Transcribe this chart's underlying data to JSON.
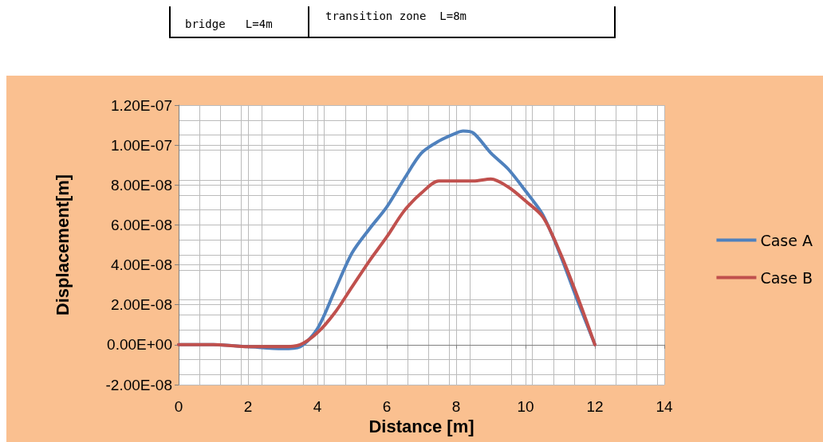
{
  "chart_data": {
    "type": "line",
    "xlabel": "Distance [m]",
    "ylabel": "Displacement[m]",
    "annotations": [
      "bridge   L=4m",
      "transition zone  L=8m"
    ],
    "xlim": [
      0,
      14
    ],
    "xticks": [
      0,
      2,
      4,
      6,
      8,
      10,
      12,
      14
    ],
    "ylim": [
      -2e-08,
      1.2e-07
    ],
    "yticks": [
      {
        "value": -2e-08,
        "label": "-2.00E-08"
      },
      {
        "value": 0,
        "label": "0.00E+00"
      },
      {
        "value": 2e-08,
        "label": "2.00E-08"
      },
      {
        "value": 4e-08,
        "label": "4.00E-08"
      },
      {
        "value": 6e-08,
        "label": "6.00E-08"
      },
      {
        "value": 8e-08,
        "label": "8.00E-08"
      },
      {
        "value": 1e-07,
        "label": "1.00E-07"
      },
      {
        "value": 1.2e-07,
        "label": "1.20E-07"
      }
    ],
    "grid": true,
    "legend": "right",
    "marker": "none",
    "line_style": "solid",
    "x": [
      0,
      1,
      2,
      3,
      3.5,
      4,
      4.5,
      5,
      5.5,
      6,
      6.5,
      7,
      7.5,
      8,
      8.2,
      8.5,
      9,
      9.5,
      10,
      10.5,
      11,
      11.5,
      12
    ],
    "series": [
      {
        "name": "Case A",
        "color": "#4f81bd",
        "values": [
          0,
          0,
          -1e-09,
          -2e-09,
          -1e-09,
          8e-09,
          2.7e-08,
          4.6e-08,
          5.8e-08,
          6.9e-08,
          8.3e-08,
          9.6e-08,
          1.02e-07,
          1.06e-07,
          1.07e-07,
          1.06e-07,
          9.6e-08,
          8.8e-08,
          7.7e-08,
          6.5e-08,
          4.5e-08,
          2.2e-08,
          0
        ]
      },
      {
        "name": "Case B",
        "color": "#c0504d",
        "values": [
          0,
          0,
          -1e-09,
          -1e-09,
          0,
          6e-09,
          1.6e-08,
          2.9e-08,
          4.2e-08,
          5.4e-08,
          6.7e-08,
          7.6e-08,
          8.2e-08,
          8.2e-08,
          8.2e-08,
          8.2e-08,
          8.3e-08,
          7.9e-08,
          7.2e-08,
          6.4e-08,
          4.6e-08,
          2.4e-08,
          0
        ]
      }
    ]
  }
}
